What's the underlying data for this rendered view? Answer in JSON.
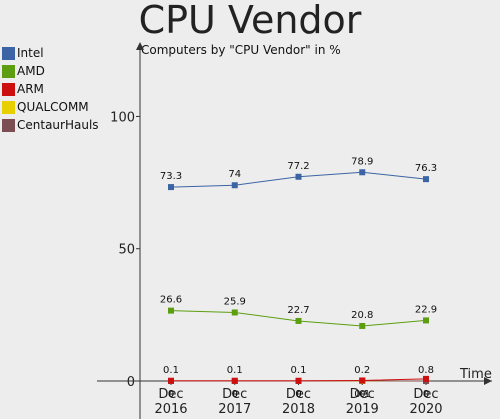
{
  "chart_data": {
    "type": "line",
    "title": "CPU Vendor",
    "subtitle": "Computers by \"CPU Vendor\" in %",
    "xlabel": "Time",
    "ylabel": "",
    "ylim": [
      0,
      120
    ],
    "y_ticks": [
      0,
      50,
      100
    ],
    "y_tick_labels": [
      "0",
      "50",
      "100"
    ],
    "categories": [
      "Dec\n2016",
      "Dec\n2017",
      "Dec\n2018",
      "Dec\n2019",
      "Dec\n2020"
    ],
    "legend_position": "top-left",
    "series": [
      {
        "name": "Intel",
        "color": "#3c64a4",
        "values": [
          73.3,
          74,
          77.2,
          78.9,
          76.3
        ],
        "labels": [
          "73.3",
          "74",
          "77.2",
          "78.9",
          "76.3"
        ]
      },
      {
        "name": "AMD",
        "color": "#5c9e10",
        "values": [
          26.6,
          25.9,
          22.7,
          20.8,
          22.9
        ],
        "labels": [
          "26.6",
          "25.9",
          "22.7",
          "20.8",
          "22.9"
        ]
      },
      {
        "name": "ARM",
        "color": "#cc1010",
        "values": [
          0.1,
          0.1,
          0.1,
          0.2,
          0.8
        ],
        "labels": [
          "0.1",
          "0.1",
          "0.1",
          "0.2",
          "0.8"
        ]
      },
      {
        "name": "QUALCOMM",
        "color": "#e8d000",
        "values": [
          0,
          0,
          0,
          0,
          0
        ],
        "labels": [
          "0",
          "0",
          "0",
          "0",
          "0"
        ]
      },
      {
        "name": "CentaurHauls",
        "color": "#7a4e52",
        "values": [
          0,
          0,
          0,
          0.1,
          0
        ],
        "labels": [
          "0",
          "0",
          "0",
          "0.1",
          "0"
        ]
      }
    ]
  }
}
